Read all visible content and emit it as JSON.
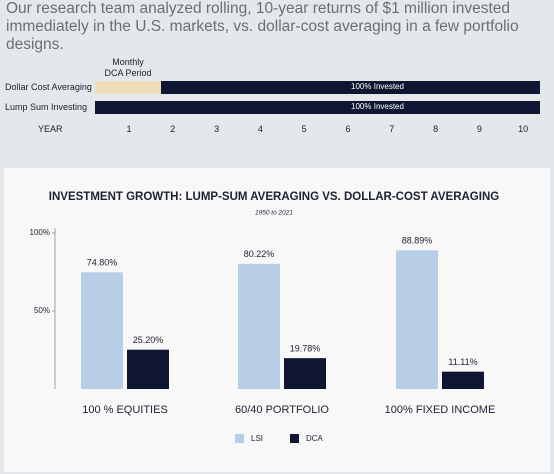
{
  "intro": "Our research team analyzed rolling, 10-year returns of $1 million invested immediately in the U.S. markets, vs. dollar-cost averaging in a few portfolio designs.",
  "timeline": {
    "period_label": "Monthly DCA Period",
    "rows": [
      {
        "label": "Dollar Cost Averaging",
        "bar_text": "100% Invested"
      },
      {
        "label": "Lump Sum Investing",
        "bar_text": "100% Invested"
      }
    ],
    "axis_label": "YEAR",
    "years": [
      1,
      2,
      3,
      4,
      5,
      6,
      7,
      8,
      9,
      10
    ]
  },
  "chart_data": {
    "type": "bar",
    "title": "INVESTMENT GROWTH: LUMP-SUM AVERAGING VS. DOLLAR-COST AVERAGING",
    "subtitle": "1950 to 2021",
    "categories": [
      "100 % EQUITIES",
      "60/40 PORTFOLIO",
      "100% FIXED INCOME"
    ],
    "series": [
      {
        "name": "LSI",
        "color": "#b8cde6",
        "values": [
          74.8,
          80.22,
          88.89
        ],
        "value_labels": [
          "74.80%",
          "80.22%",
          "88.89%"
        ]
      },
      {
        "name": "DCA",
        "color": "#0f1631",
        "values": [
          25.2,
          19.78,
          11.11
        ],
        "value_labels": [
          "25.20%",
          "19.78%",
          "11.11%"
        ]
      }
    ],
    "ylim": [
      0,
      100
    ],
    "yticks": [
      {
        "value": 50,
        "label": "50%"
      },
      {
        "value": 100,
        "label": "100%"
      }
    ],
    "legend": "bottom"
  }
}
